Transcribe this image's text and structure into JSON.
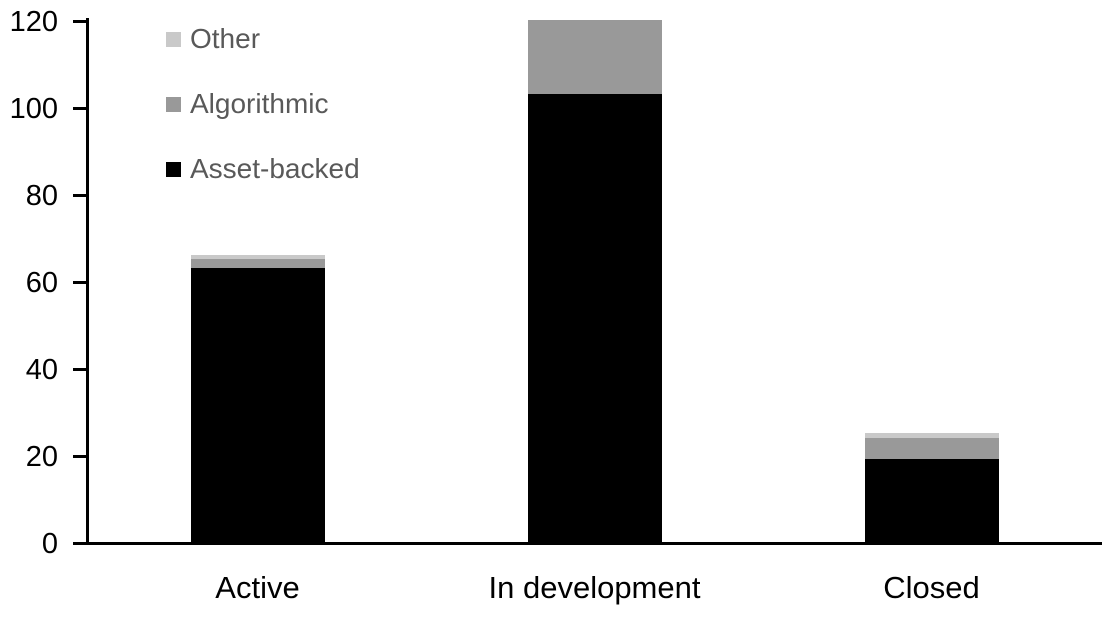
{
  "chart_data": {
    "type": "bar",
    "stacked": true,
    "title": "",
    "xlabel": "",
    "ylabel": "",
    "categories": [
      "Active",
      "In development",
      "Closed"
    ],
    "series": [
      {
        "name": "Asset-backed",
        "color": "#000000",
        "values": [
          63,
          103,
          19
        ]
      },
      {
        "name": "Algorithmic",
        "color": "#999999",
        "values": [
          2,
          17,
          5
        ]
      },
      {
        "name": "Other",
        "color": "#c9c9c9",
        "values": [
          1,
          0,
          1
        ]
      }
    ],
    "totals": [
      66,
      120,
      25
    ],
    "ylim": [
      0,
      120
    ],
    "yticks": [
      0,
      20,
      40,
      60,
      80,
      100,
      120
    ],
    "grid": false,
    "axis_color": "#000000",
    "legend": {
      "position": "top-left",
      "text_color": "#595959",
      "entries": [
        {
          "label": "Other",
          "color": "#c9c9c9"
        },
        {
          "label": "Algorithmic",
          "color": "#999999"
        },
        {
          "label": "Asset-backed",
          "color": "#000000"
        }
      ]
    }
  }
}
